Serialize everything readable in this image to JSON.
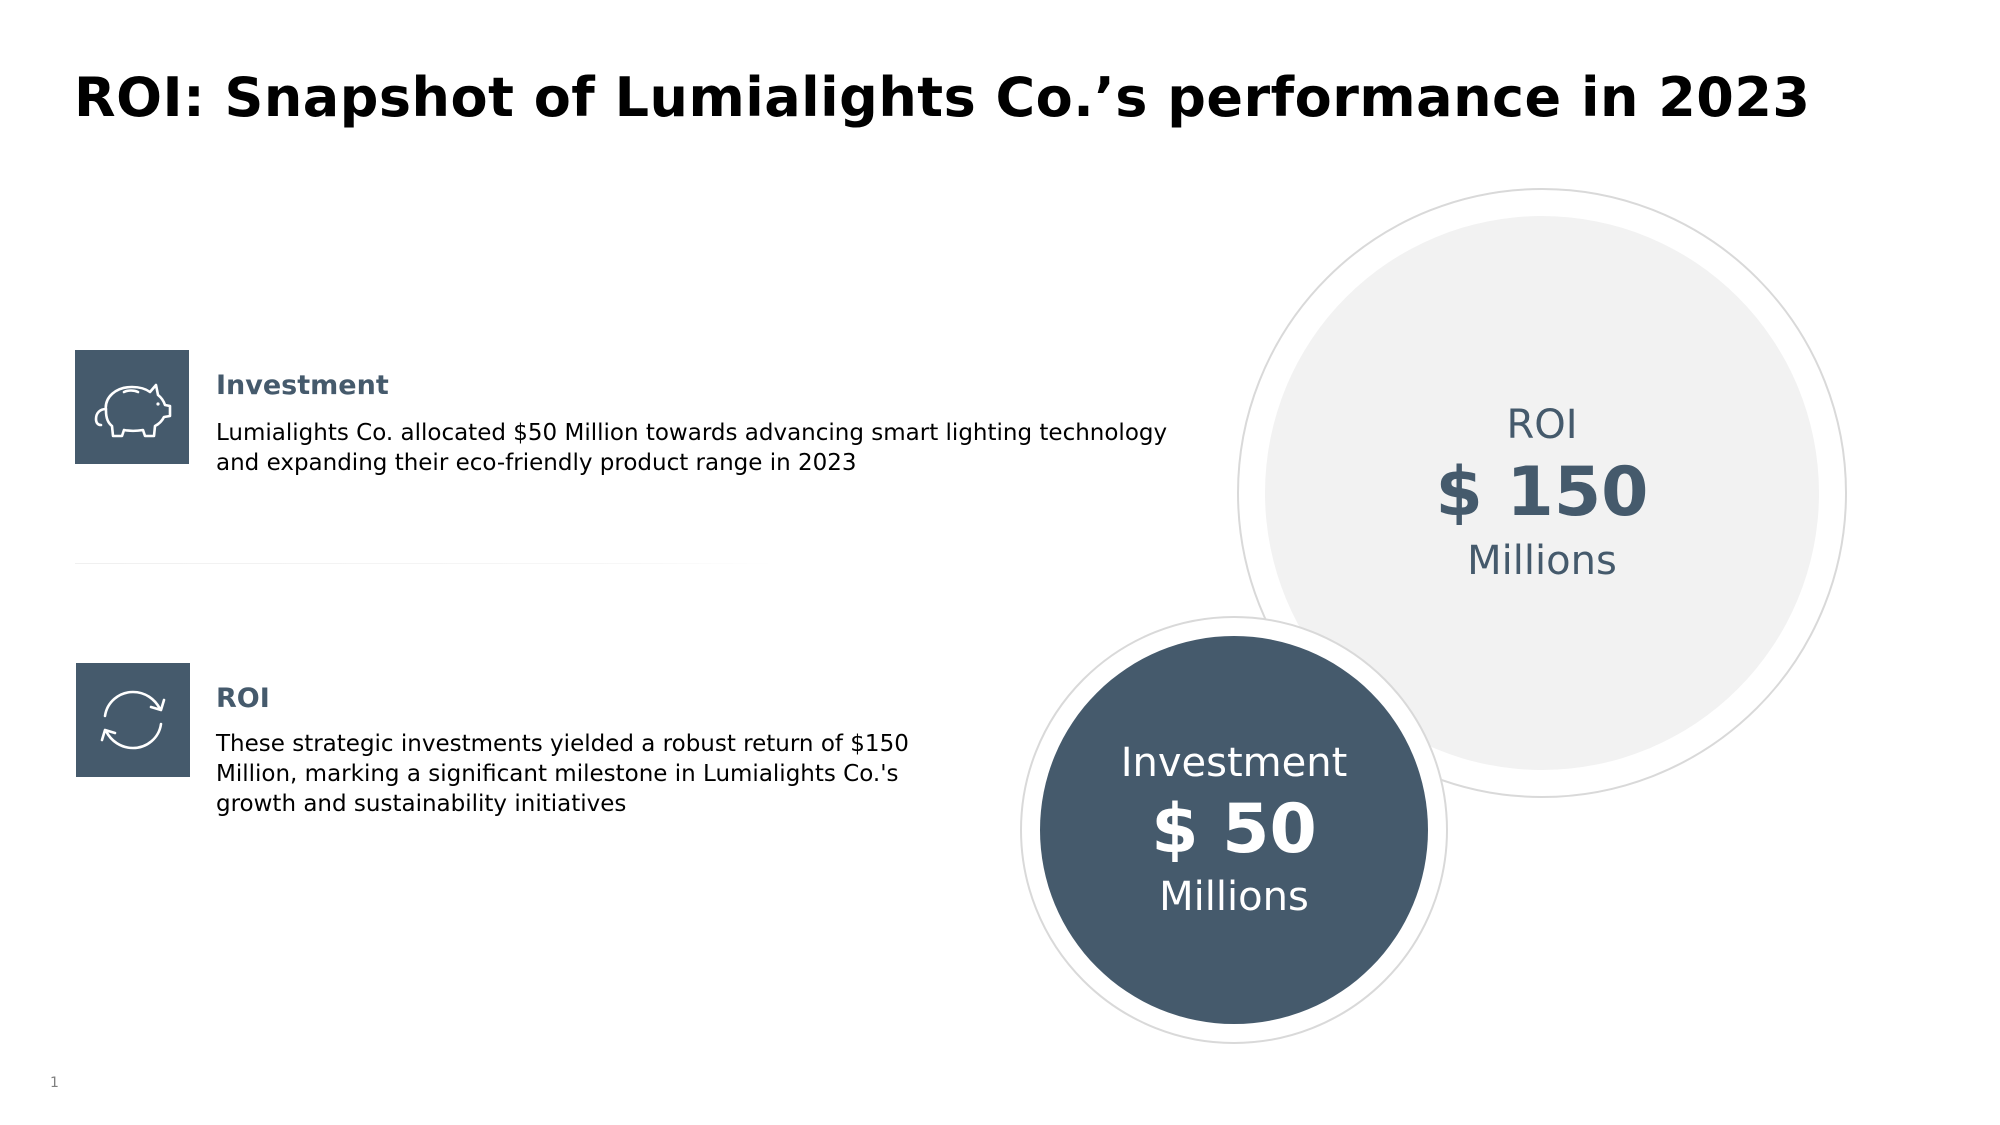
{
  "slide": {
    "title": "ROI: Snapshot of Lumialights Co.’s performance in 2023",
    "page_number": "1"
  },
  "items": [
    {
      "icon": "piggy-bank-icon",
      "heading": "Investment",
      "body": "Lumialights Co. allocated $50 Million towards advancing smart lighting technology and expanding their eco-friendly product range in 2023"
    },
    {
      "icon": "refresh-cycle-icon",
      "heading": "ROI",
      "body": "These strategic investments yielded a robust return of $150 Million, marking a significant milestone in Lumialights Co.'s growth and sustainability initiatives"
    }
  ],
  "circles": {
    "roi": {
      "label": "ROI",
      "value": "$ 150",
      "unit": "Millions"
    },
    "investment": {
      "label": "Investment",
      "value": "$ 50",
      "unit": "Millions"
    }
  },
  "colors": {
    "accent": "#455a6c",
    "light_fill": "#f2f2f2",
    "ring": "#d9d9d9"
  }
}
